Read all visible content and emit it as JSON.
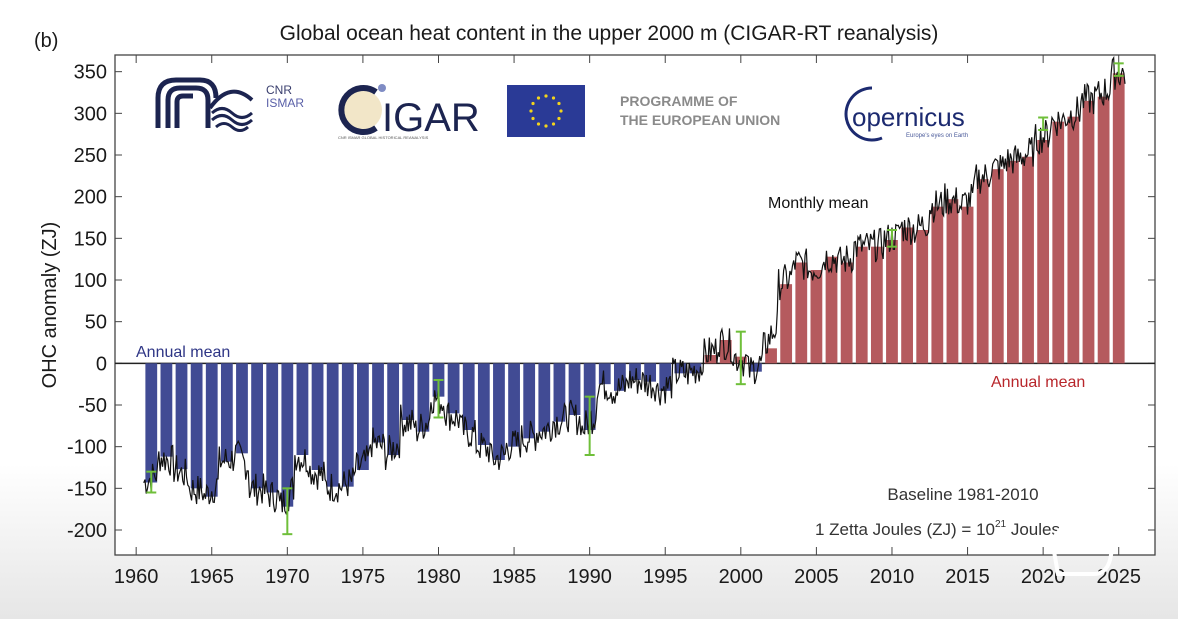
{
  "panel_label": "(b)",
  "logos": {
    "cnr_ismar_line1": "CNR",
    "cnr_ismar_line2": "ISMAR",
    "cigar": "IGAR",
    "cigar_sub": "CNR ISMAR GLOBAL HISTORICAL REANALYSIS",
    "eu_programme_line1": "PROGRAMME OF",
    "eu_programme_line2": "THE EUROPEAN UNION",
    "copernicus": "opernicus",
    "copernicus_tagline": "Europe's eyes on Earth"
  },
  "colors": {
    "negative_bar": "#414b94",
    "positive_bar": "#b55a5e",
    "monthly_line": "#111111",
    "error_bar": "#6fbf3a",
    "annotation_blue": "#2e3585",
    "annotation_red": "#b8262b"
  },
  "chart_data": {
    "type": "bar",
    "title": "Global ocean heat content in the upper 2000 m (CIGAR-RT reanalysis)",
    "xlabel": "",
    "ylabel": "OHC anomaly (ZJ)",
    "xlim": [
      1958.6,
      2027.4
    ],
    "ylim": [
      -230,
      370
    ],
    "xticks": [
      1960,
      1965,
      1970,
      1975,
      1980,
      1985,
      1990,
      1995,
      2000,
      2005,
      2010,
      2015,
      2020,
      2025
    ],
    "yticks": [
      -200,
      -150,
      -100,
      -50,
      0,
      50,
      100,
      150,
      200,
      250,
      300,
      350
    ],
    "grid": false,
    "annotations": {
      "annual_mean_left": "Annual mean",
      "annual_mean_right": "Annual mean",
      "monthly_mean": "Monthly mean",
      "baseline": "Baseline 1981-2010",
      "unit_prefix": "1 Zetta Joules (ZJ) = 10",
      "unit_exponent": "21",
      "unit_suffix": " Joules"
    },
    "series": [
      {
        "name": "Annual mean",
        "years": [
          1961,
          1962,
          1963,
          1964,
          1965,
          1966,
          1967,
          1968,
          1969,
          1970,
          1971,
          1972,
          1973,
          1974,
          1975,
          1976,
          1977,
          1978,
          1979,
          1980,
          1981,
          1982,
          1983,
          1984,
          1985,
          1986,
          1987,
          1988,
          1989,
          1990,
          1991,
          1992,
          1993,
          1994,
          1995,
          1996,
          1997,
          1998,
          1999,
          2000,
          2001,
          2002,
          2003,
          2004,
          2005,
          2006,
          2007,
          2008,
          2009,
          2010,
          2011,
          2012,
          2013,
          2014,
          2015,
          2016,
          2017,
          2018,
          2019,
          2020,
          2021,
          2022,
          2023,
          2024,
          2025
        ],
        "values": [
          -143,
          -112,
          -127,
          -150,
          -160,
          -118,
          -108,
          -150,
          -155,
          -172,
          -110,
          -128,
          -148,
          -148,
          -128,
          -95,
          -110,
          -68,
          -82,
          -40,
          -60,
          -80,
          -98,
          -116,
          -100,
          -90,
          -82,
          -70,
          -62,
          -80,
          -25,
          -33,
          -20,
          -22,
          -33,
          -12,
          -12,
          10,
          28,
          8,
          -10,
          18,
          95,
          121,
          112,
          128,
          121,
          140,
          140,
          148,
          163,
          160,
          188,
          197,
          188,
          221,
          233,
          243,
          248,
          268,
          290,
          296,
          315,
          320,
          348
        ]
      },
      {
        "name": "Monthly mean",
        "type": "line"
      }
    ],
    "error_bars": [
      {
        "year": 1961,
        "low": -155,
        "high": -130
      },
      {
        "year": 1970,
        "low": -205,
        "high": -150
      },
      {
        "year": 1980,
        "low": -65,
        "high": -20
      },
      {
        "year": 1990,
        "low": -110,
        "high": -40
      },
      {
        "year": 2000,
        "low": -25,
        "high": 38
      },
      {
        "year": 2010,
        "low": 140,
        "high": 160
      },
      {
        "year": 2020,
        "low": 280,
        "high": 295
      },
      {
        "year": 2025,
        "low": 345,
        "high": 360
      }
    ]
  }
}
